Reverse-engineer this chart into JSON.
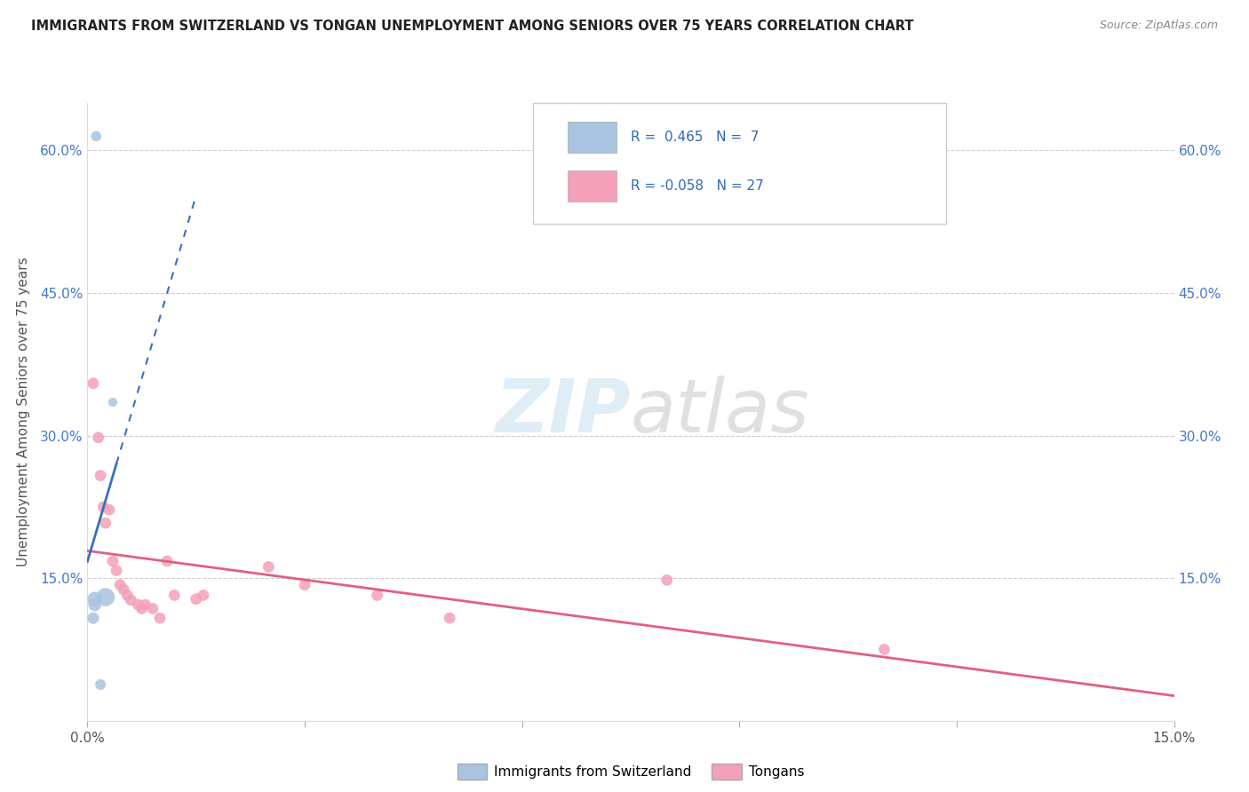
{
  "title": "IMMIGRANTS FROM SWITZERLAND VS TONGAN UNEMPLOYMENT AMONG SENIORS OVER 75 YEARS CORRELATION CHART",
  "source": "Source: ZipAtlas.com",
  "ylabel": "Unemployment Among Seniors over 75 years",
  "xlim": [
    0.0,
    0.15
  ],
  "ylim": [
    0.0,
    0.65
  ],
  "x_ticks": [
    0.0,
    0.03,
    0.06,
    0.09,
    0.12,
    0.15
  ],
  "y_ticks": [
    0.0,
    0.15,
    0.3,
    0.45,
    0.6
  ],
  "blue_color": "#a8c4e0",
  "blue_line_color": "#3a6fbe",
  "pink_color": "#f4a0b8",
  "pink_line_color": "#e06080",
  "watermark_color": "#d0e8f5",
  "switzerland_points": [
    [
      0.0012,
      0.615
    ],
    [
      0.0035,
      0.335
    ],
    [
      0.0025,
      0.13
    ],
    [
      0.001,
      0.128
    ],
    [
      0.001,
      0.122
    ],
    [
      0.0008,
      0.108
    ],
    [
      0.0018,
      0.038
    ]
  ],
  "switzerland_sizes": [
    70,
    55,
    220,
    140,
    110,
    90,
    75
  ],
  "tongan_points": [
    [
      0.0008,
      0.355
    ],
    [
      0.0015,
      0.298
    ],
    [
      0.0018,
      0.258
    ],
    [
      0.0022,
      0.225
    ],
    [
      0.0025,
      0.208
    ],
    [
      0.003,
      0.222
    ],
    [
      0.0035,
      0.168
    ],
    [
      0.004,
      0.158
    ],
    [
      0.0045,
      0.143
    ],
    [
      0.005,
      0.138
    ],
    [
      0.0055,
      0.132
    ],
    [
      0.006,
      0.127
    ],
    [
      0.007,
      0.122
    ],
    [
      0.0075,
      0.118
    ],
    [
      0.008,
      0.122
    ],
    [
      0.009,
      0.118
    ],
    [
      0.01,
      0.108
    ],
    [
      0.011,
      0.168
    ],
    [
      0.012,
      0.132
    ],
    [
      0.015,
      0.128
    ],
    [
      0.016,
      0.132
    ],
    [
      0.025,
      0.162
    ],
    [
      0.03,
      0.143
    ],
    [
      0.04,
      0.132
    ],
    [
      0.05,
      0.108
    ],
    [
      0.08,
      0.148
    ],
    [
      0.11,
      0.075
    ]
  ],
  "tongan_sizes": [
    85,
    85,
    85,
    85,
    85,
    85,
    85,
    85,
    85,
    85,
    85,
    85,
    85,
    85,
    85,
    85,
    85,
    85,
    85,
    85,
    85,
    85,
    85,
    85,
    85,
    85,
    85
  ]
}
